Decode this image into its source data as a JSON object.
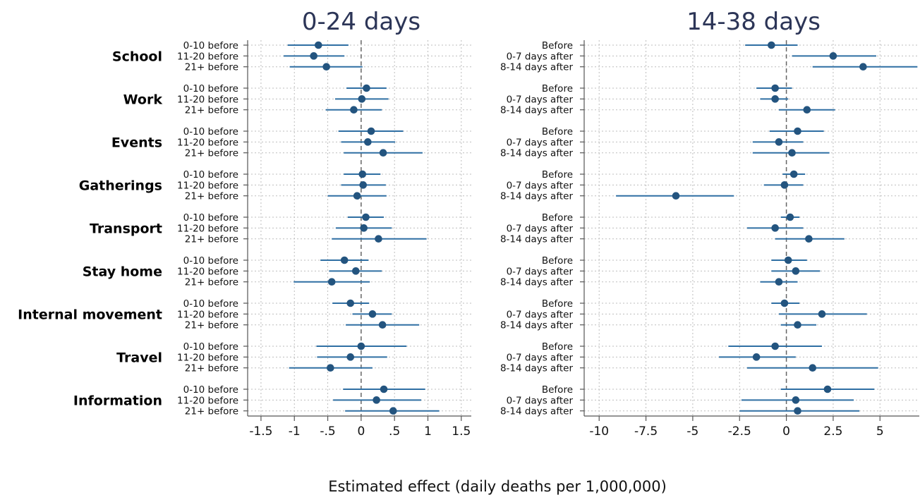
{
  "xlabel": "Estimated effect (daily deaths per 1,000,000)",
  "colors": {
    "marker": "#23547f",
    "ci_line": "#2f6fa3",
    "grid": "#bdbdbd",
    "zero_line": "#666666",
    "title": "#2c3557"
  },
  "chart_data": [
    {
      "type": "scatter",
      "style": "dot-and-whisker",
      "title": "0-24 days",
      "xlim": [
        -1.7,
        1.65
      ],
      "xticks": [
        -1.5,
        -1,
        -0.5,
        0,
        0.5,
        1,
        1.5
      ],
      "xtick_labels": [
        "-1.5",
        "-1",
        "-.5",
        "0",
        ".5",
        "1",
        "1.5"
      ],
      "grid": true,
      "reference_line": 0,
      "groups": [
        {
          "name": "School",
          "rows": [
            {
              "label": "0-10 before",
              "estimate": -0.64,
              "lower": -1.1,
              "upper": -0.19
            },
            {
              "label": "11-20 before",
              "estimate": -0.71,
              "lower": -1.16,
              "upper": -0.25
            },
            {
              "label": "21+ before",
              "estimate": -0.52,
              "lower": -1.07,
              "upper": 0.02
            }
          ]
        },
        {
          "name": "Work",
          "rows": [
            {
              "label": "0-10 before",
              "estimate": 0.08,
              "lower": -0.22,
              "upper": 0.38
            },
            {
              "label": "11-20 before",
              "estimate": 0.01,
              "lower": -0.39,
              "upper": 0.41
            },
            {
              "label": "21+ before",
              "estimate": -0.11,
              "lower": -0.53,
              "upper": 0.31
            }
          ]
        },
        {
          "name": "Events",
          "rows": [
            {
              "label": "0-10 before",
              "estimate": 0.15,
              "lower": -0.34,
              "upper": 0.63
            },
            {
              "label": "11-20 before",
              "estimate": 0.1,
              "lower": -0.3,
              "upper": 0.51
            },
            {
              "label": "21+ before",
              "estimate": 0.33,
              "lower": -0.26,
              "upper": 0.92
            }
          ]
        },
        {
          "name": "Gatherings",
          "rows": [
            {
              "label": "0-10 before",
              "estimate": 0.02,
              "lower": -0.26,
              "upper": 0.29
            },
            {
              "label": "11-20 before",
              "estimate": 0.03,
              "lower": -0.3,
              "upper": 0.37
            },
            {
              "label": "21+ before",
              "estimate": -0.06,
              "lower": -0.5,
              "upper": 0.38
            }
          ]
        },
        {
          "name": "Transport",
          "rows": [
            {
              "label": "0-10 before",
              "estimate": 0.07,
              "lower": -0.2,
              "upper": 0.34
            },
            {
              "label": "11-20 before",
              "estimate": 0.04,
              "lower": -0.38,
              "upper": 0.46
            },
            {
              "label": "21+ before",
              "estimate": 0.26,
              "lower": -0.44,
              "upper": 0.98
            }
          ]
        },
        {
          "name": "Stay home",
          "rows": [
            {
              "label": "0-10 before",
              "estimate": -0.25,
              "lower": -0.61,
              "upper": 0.11
            },
            {
              "label": "11-20 before",
              "estimate": -0.08,
              "lower": -0.48,
              "upper": 0.31
            },
            {
              "label": "21+ before",
              "estimate": -0.44,
              "lower": -1.01,
              "upper": 0.13
            }
          ]
        },
        {
          "name": "Internal movement",
          "rows": [
            {
              "label": "0-10 before",
              "estimate": -0.16,
              "lower": -0.43,
              "upper": 0.12
            },
            {
              "label": "11-20 before",
              "estimate": 0.17,
              "lower": -0.13,
              "upper": 0.46
            },
            {
              "label": "21+ before",
              "estimate": 0.32,
              "lower": -0.23,
              "upper": 0.87
            }
          ]
        },
        {
          "name": "Travel",
          "rows": [
            {
              "label": "0-10 before",
              "estimate": 0.0,
              "lower": -0.67,
              "upper": 0.68
            },
            {
              "label": "11-20 before",
              "estimate": -0.16,
              "lower": -0.66,
              "upper": 0.39
            },
            {
              "label": "21+ before",
              "estimate": -0.46,
              "lower": -1.08,
              "upper": 0.17
            }
          ]
        },
        {
          "name": "Information",
          "rows": [
            {
              "label": "0-10 before",
              "estimate": 0.34,
              "lower": -0.27,
              "upper": 0.96
            },
            {
              "label": "11-20 before",
              "estimate": 0.23,
              "lower": -0.42,
              "upper": 0.9
            },
            {
              "label": "21+ before",
              "estimate": 0.48,
              "lower": -0.24,
              "upper": 1.17
            }
          ]
        }
      ]
    },
    {
      "type": "scatter",
      "style": "dot-and-whisker",
      "title": "14-38 days",
      "xlim": [
        -10.8,
        7.1
      ],
      "xticks": [
        -10,
        -7.5,
        -5,
        -2.5,
        0,
        2.5,
        5
      ],
      "xtick_labels": [
        "-10",
        "-7.5",
        "-5",
        "-2.5",
        "0",
        "2.5",
        "5"
      ],
      "grid": true,
      "reference_line": 0,
      "groups": [
        {
          "name": "School",
          "rows": [
            {
              "label": "Before",
              "estimate": -0.8,
              "lower": -2.2,
              "upper": 0.6
            },
            {
              "label": "0-7 days after",
              "estimate": 2.5,
              "lower": 0.3,
              "upper": 4.8
            },
            {
              "label": "8-14 days after",
              "estimate": 4.1,
              "lower": 1.4,
              "upper": 7.0
            }
          ]
        },
        {
          "name": "Work",
          "rows": [
            {
              "label": "Before",
              "estimate": -0.6,
              "lower": -1.6,
              "upper": 0.3
            },
            {
              "label": "0-7 days after",
              "estimate": -0.6,
              "lower": -1.4,
              "upper": 0.1
            },
            {
              "label": "8-14 days after",
              "estimate": 1.1,
              "lower": -0.4,
              "upper": 2.6
            }
          ]
        },
        {
          "name": "Events",
          "rows": [
            {
              "label": "Before",
              "estimate": 0.6,
              "lower": -0.9,
              "upper": 2.0
            },
            {
              "label": "0-7 days after",
              "estimate": -0.4,
              "lower": -1.8,
              "upper": 0.9
            },
            {
              "label": "8-14 days after",
              "estimate": 0.3,
              "lower": -1.8,
              "upper": 2.3
            }
          ]
        },
        {
          "name": "Gatherings",
          "rows": [
            {
              "label": "Before",
              "estimate": 0.4,
              "lower": -0.2,
              "upper": 1.0
            },
            {
              "label": "0-7 days after",
              "estimate": -0.1,
              "lower": -1.2,
              "upper": 0.9
            },
            {
              "label": "8-14 days after",
              "estimate": -5.9,
              "lower": -9.1,
              "upper": -2.8
            }
          ]
        },
        {
          "name": "Transport",
          "rows": [
            {
              "label": "Before",
              "estimate": 0.2,
              "lower": -0.3,
              "upper": 0.7
            },
            {
              "label": "0-7 days after",
              "estimate": -0.6,
              "lower": -2.1,
              "upper": 0.9
            },
            {
              "label": "8-14 days after",
              "estimate": 1.2,
              "lower": -0.6,
              "upper": 3.1
            }
          ]
        },
        {
          "name": "Stay home",
          "rows": [
            {
              "label": "Before",
              "estimate": 0.1,
              "lower": -0.8,
              "upper": 1.1
            },
            {
              "label": "0-7 days after",
              "estimate": 0.5,
              "lower": -0.8,
              "upper": 1.8
            },
            {
              "label": "8-14 days after",
              "estimate": -0.4,
              "lower": -1.4,
              "upper": 0.6
            }
          ]
        },
        {
          "name": "Internal movement",
          "rows": [
            {
              "label": "Before",
              "estimate": -0.1,
              "lower": -0.8,
              "upper": 0.7
            },
            {
              "label": "0-7 days after",
              "estimate": 1.9,
              "lower": -0.4,
              "upper": 4.3
            },
            {
              "label": "8-14 days after",
              "estimate": 0.6,
              "lower": -0.3,
              "upper": 1.6
            }
          ]
        },
        {
          "name": "Travel",
          "rows": [
            {
              "label": "Before",
              "estimate": -0.6,
              "lower": -3.1,
              "upper": 1.9
            },
            {
              "label": "0-7 days after",
              "estimate": -1.6,
              "lower": -3.6,
              "upper": 0.5
            },
            {
              "label": "8-14 days after",
              "estimate": 1.4,
              "lower": -2.1,
              "upper": 4.9
            }
          ]
        },
        {
          "name": "Information",
          "rows": [
            {
              "label": "Before",
              "estimate": 2.2,
              "lower": -0.3,
              "upper": 4.7
            },
            {
              "label": "0-7 days after",
              "estimate": 0.5,
              "lower": -2.4,
              "upper": 3.6
            },
            {
              "label": "8-14 days after",
              "estimate": 0.6,
              "lower": -2.5,
              "upper": 3.9
            }
          ]
        }
      ]
    }
  ]
}
